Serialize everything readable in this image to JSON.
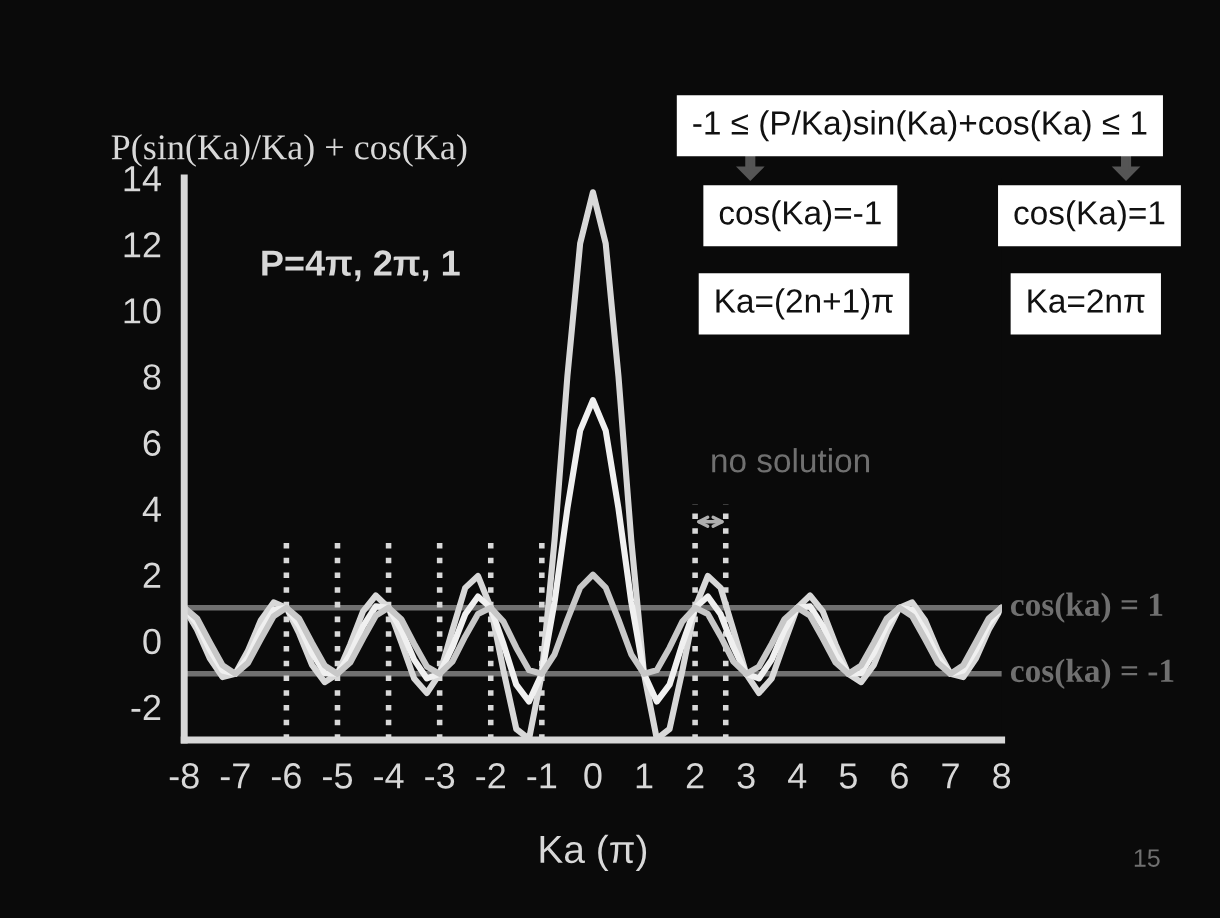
{
  "chart_data": {
    "type": "line",
    "xlabel": "Ka (π)",
    "ylabel": "P(sin(Ka)/Ka) + cos(Ka)",
    "x": [
      -8,
      -7.75,
      -7.5,
      -7.25,
      -7,
      -6.75,
      -6.5,
      -6.25,
      -6,
      -5.75,
      -5.5,
      -5.25,
      -5,
      -4.75,
      -4.5,
      -4.25,
      -4,
      -3.75,
      -3.5,
      -3.25,
      -3,
      -2.75,
      -2.5,
      -2.25,
      -2,
      -1.75,
      -1.5,
      -1.25,
      -1,
      -0.75,
      -0.5,
      -0.25,
      0,
      0.25,
      0.5,
      0.75,
      1,
      1.25,
      1.5,
      1.75,
      2,
      2.25,
      2.5,
      2.75,
      3,
      3.25,
      3.5,
      3.75,
      4,
      4.25,
      4.5,
      4.75,
      5,
      5.25,
      5.5,
      5.75,
      6,
      6.25,
      6.5,
      6.75,
      7,
      7.25,
      7.5,
      7.75,
      8
    ],
    "series": [
      {
        "color": "#d8d8d8",
        "values": [
          1.0,
          0.34,
          -0.53,
          -1.1,
          -1.0,
          -0.29,
          0.62,
          1.16,
          1.0,
          0.22,
          -0.73,
          -1.25,
          -1.0,
          -0.11,
          0.89,
          1.37,
          1.0,
          -0.05,
          -1.14,
          -1.58,
          -1.0,
          0.32,
          1.6,
          1.96,
          1.0,
          -0.91,
          -2.67,
          -2.97,
          -1.0,
          3.06,
          8.0,
          12.02,
          13.57,
          12.02,
          8.0,
          3.06,
          -1.0,
          -2.97,
          -2.67,
          -0.91,
          1.0,
          1.96,
          1.6,
          0.32,
          -1.0,
          -1.58,
          -1.14,
          -0.05,
          1.0,
          1.37,
          0.89,
          -0.11,
          -1.0,
          -1.25,
          -0.73,
          0.22,
          1.0,
          1.16,
          0.62,
          -0.29,
          -1.0,
          -1.1,
          -0.53,
          0.34,
          1.0
        ]
      },
      {
        "color": "#f0f0f0",
        "values": [
          1.0,
          0.52,
          -0.27,
          -0.9,
          -1.0,
          -0.5,
          0.31,
          0.93,
          1.0,
          0.46,
          -0.36,
          -0.98,
          -1.0,
          -0.41,
          0.44,
          1.04,
          1.0,
          0.33,
          -0.57,
          -1.14,
          -1.0,
          -0.19,
          0.8,
          1.34,
          1.0,
          -0.1,
          -1.33,
          -1.84,
          -1.0,
          1.18,
          4.0,
          6.36,
          7.28,
          6.36,
          4.0,
          1.18,
          -1.0,
          -1.84,
          -1.33,
          -0.1,
          1.0,
          1.34,
          0.8,
          -0.19,
          -1.0,
          -1.14,
          -0.57,
          0.33,
          1.0,
          1.04,
          0.44,
          -0.41,
          -1.0,
          -0.98,
          -0.36,
          0.46,
          1.0,
          0.93,
          0.31,
          -0.5,
          -1.0,
          -0.9,
          -0.27,
          0.52,
          1.0
        ]
      },
      {
        "color": "#c8c8c8",
        "values": [
          1.0,
          0.68,
          -0.04,
          -0.74,
          -1.0,
          -0.67,
          0.05,
          0.74,
          1.0,
          0.67,
          -0.06,
          -0.75,
          -1.0,
          -0.66,
          0.07,
          0.76,
          1.0,
          0.65,
          -0.09,
          -0.78,
          -1.0,
          -0.63,
          0.13,
          0.81,
          1.0,
          0.58,
          -0.21,
          -0.89,
          -1.0,
          -0.41,
          0.64,
          1.61,
          2.0,
          1.61,
          0.64,
          -0.41,
          -1.0,
          -0.89,
          -0.21,
          0.58,
          1.0,
          0.81,
          0.13,
          -0.63,
          -1.0,
          -0.78,
          -0.09,
          0.65,
          1.0,
          0.76,
          0.07,
          -0.66,
          -1.0,
          -0.75,
          -0.06,
          0.67,
          1.0,
          0.74,
          0.05,
          -0.67,
          -1.0,
          -0.74,
          -0.04,
          0.68,
          1.0
        ]
      }
    ],
    "xlim": [
      -8,
      8
    ],
    "xticks": [
      -8,
      -7,
      -6,
      -5,
      -4,
      -3,
      -2,
      -1,
      0,
      1,
      2,
      3,
      4,
      5,
      6,
      7,
      8
    ],
    "ylim": [
      -3,
      14
    ],
    "yticks": [
      -2,
      0,
      2,
      4,
      6,
      8,
      10,
      12,
      14
    ],
    "ref_lines": [
      {
        "axis": "y",
        "value": 1,
        "label": "cos(ka) = 1",
        "color": "#707070"
      },
      {
        "axis": "y",
        "value": -1,
        "label": "cos(ka) = -1",
        "color": "#707070"
      },
      {
        "axis": "x",
        "value": -6,
        "label": null,
        "color": "#d8d8d8",
        "line_style": "dotted"
      },
      {
        "axis": "x",
        "value": -5,
        "label": null,
        "color": "#d8d8d8",
        "line_style": "dotted"
      },
      {
        "axis": "x",
        "value": -4,
        "label": null,
        "color": "#d8d8d8",
        "line_style": "dotted"
      },
      {
        "axis": "x",
        "value": -3,
        "label": null,
        "color": "#d8d8d8",
        "line_style": "dotted"
      },
      {
        "axis": "x",
        "value": -2,
        "label": null,
        "color": "#d8d8d8",
        "line_style": "dotted"
      },
      {
        "axis": "x",
        "value": -1,
        "label": null,
        "color": "#d8d8d8",
        "line_style": "dotted"
      },
      {
        "axis": "x",
        "value": 2,
        "label": null,
        "color": "#d8d8d8",
        "line_style": "dotted"
      },
      {
        "axis": "x",
        "value": 2.6,
        "label": null,
        "color": "#d8d8d8",
        "line_style": "dotted"
      }
    ],
    "annotations": [
      "P=4π, 2π, 1",
      "-1 ≤ (P/Ka)sin(Ka)+cos(Ka) ≤ 1",
      "cos(Ka)=-1",
      "cos(Ka)=1",
      "Ka=(2n+1)π",
      "Ka=2nπ",
      "no solution",
      "15"
    ],
    "grid": false,
    "legend": false,
    "marker": "none",
    "line_style": "solid"
  }
}
